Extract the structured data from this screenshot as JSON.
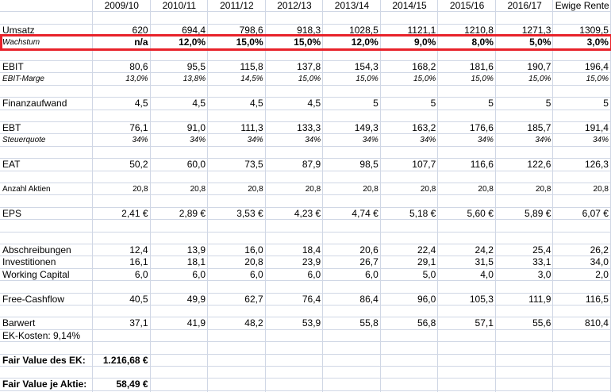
{
  "table": {
    "columns": [
      "2009/10",
      "2010/11",
      "2011/12",
      "2012/13",
      "2013/14",
      "2014/15",
      "2015/16",
      "2016/17",
      "Ewige Rente"
    ],
    "rows": [
      {
        "label": "Umsatz",
        "cells": [
          "620",
          "694,4",
          "798,6",
          "918,3",
          "1028,5",
          "1121,1",
          "1210,8",
          "1271,3",
          "1309,5"
        ]
      },
      {
        "label": "Wachstum",
        "cells": [
          "n/a",
          "12,0%",
          "15,0%",
          "15,0%",
          "12,0%",
          "9,0%",
          "8,0%",
          "5,0%",
          "3,0%"
        ]
      },
      {
        "label": "EBIT",
        "cells": [
          "80,6",
          "95,5",
          "115,8",
          "137,8",
          "154,3",
          "168,2",
          "181,6",
          "190,7",
          "196,4"
        ]
      },
      {
        "label": "EBIT-Marge",
        "cells": [
          "13,0%",
          "13,8%",
          "14,5%",
          "15,0%",
          "15,0%",
          "15,0%",
          "15,0%",
          "15,0%",
          "15,0%"
        ]
      },
      {
        "label": "Finanzaufwand",
        "cells": [
          "4,5",
          "4,5",
          "4,5",
          "4,5",
          "5",
          "5",
          "5",
          "5",
          "5"
        ]
      },
      {
        "label": "EBT",
        "cells": [
          "76,1",
          "91,0",
          "111,3",
          "133,3",
          "149,3",
          "163,2",
          "176,6",
          "185,7",
          "191,4"
        ]
      },
      {
        "label": "Steuerquote",
        "cells": [
          "34%",
          "34%",
          "34%",
          "34%",
          "34%",
          "34%",
          "34%",
          "34%",
          "34%"
        ]
      },
      {
        "label": "EAT",
        "cells": [
          "50,2",
          "60,0",
          "73,5",
          "87,9",
          "98,5",
          "107,7",
          "116,6",
          "122,6",
          "126,3"
        ]
      },
      {
        "label": "Anzahl Aktien",
        "cells": [
          "20,8",
          "20,8",
          "20,8",
          "20,8",
          "20,8",
          "20,8",
          "20,8",
          "20,8",
          "20,8"
        ]
      },
      {
        "label": "EPS",
        "cells": [
          "2,41 €",
          "2,89 €",
          "3,53 €",
          "4,23 €",
          "4,74 €",
          "5,18 €",
          "5,60 €",
          "5,89 €",
          "6,07 €"
        ]
      },
      {
        "label": "Abschreibungen",
        "cells": [
          "12,4",
          "13,9",
          "16,0",
          "18,4",
          "20,6",
          "22,4",
          "24,2",
          "25,4",
          "26,2"
        ]
      },
      {
        "label": "Investitionen",
        "cells": [
          "16,1",
          "18,1",
          "20,8",
          "23,9",
          "26,7",
          "29,1",
          "31,5",
          "33,1",
          "34,0"
        ]
      },
      {
        "label": "Working Capital",
        "cells": [
          "6,0",
          "6,0",
          "6,0",
          "6,0",
          "6,0",
          "5,0",
          "4,0",
          "3,0",
          "2,0"
        ]
      },
      {
        "label": "Free-Cashflow",
        "cells": [
          "40,5",
          "49,9",
          "62,7",
          "76,4",
          "86,4",
          "96,0",
          "105,3",
          "111,9",
          "116,5"
        ]
      },
      {
        "label": "Barwert",
        "cells": [
          "37,1",
          "41,9",
          "48,2",
          "53,9",
          "55,8",
          "56,8",
          "57,1",
          "55,6",
          "810,4"
        ]
      },
      {
        "label": "EK-Kosten: 9,14%"
      },
      {
        "label": "Fair Value des EK:",
        "cells": [
          "1.216,68 €"
        ]
      },
      {
        "label": "Fair Value je Aktie:",
        "cells": [
          "58,49 €"
        ]
      }
    ]
  }
}
